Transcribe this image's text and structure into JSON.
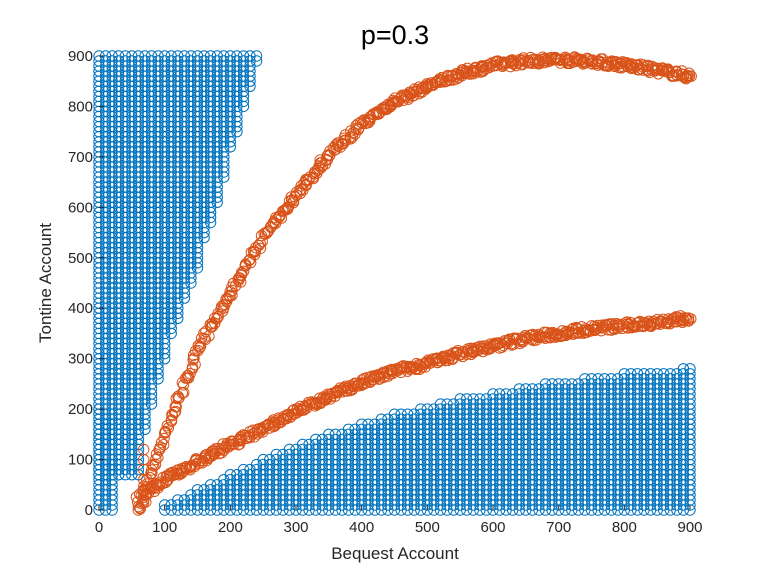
{
  "chart_data": {
    "type": "scatter",
    "title": "p=0.3",
    "xlabel": "Bequest Account",
    "ylabel": "Tontine Account",
    "xlim": [
      0,
      900
    ],
    "ylim": [
      0,
      900
    ],
    "xticks": [
      0,
      100,
      200,
      300,
      400,
      500,
      600,
      700,
      800,
      900
    ],
    "yticks": [
      0,
      100,
      200,
      300,
      400,
      500,
      600,
      700,
      800,
      900
    ],
    "grid": false,
    "legend": "none",
    "marker": "open-circle",
    "colors": {
      "blue": "#0072BD",
      "orange": "#D95319"
    },
    "blue_regions": [
      {
        "description_points": "upper-left region; for each x column, tontine values from y_min up to y_max",
        "x": [
          0,
          10,
          20,
          30,
          40,
          50,
          60,
          70,
          80,
          90,
          100,
          110,
          120,
          130,
          140,
          150,
          160,
          170,
          180,
          190,
          200,
          210,
          220,
          230,
          240
        ],
        "y_min": [
          70,
          70,
          70,
          70,
          70,
          70,
          70,
          160,
          210,
          260,
          300,
          350,
          380,
          420,
          450,
          480,
          540,
          570,
          610,
          660,
          720,
          750,
          800,
          840,
          890
        ],
        "y_max": [
          900,
          900,
          900,
          900,
          900,
          900,
          900,
          900,
          900,
          900,
          900,
          900,
          900,
          900,
          900,
          900,
          900,
          900,
          900,
          900,
          900,
          900,
          900,
          900,
          900
        ]
      },
      {
        "description_points": "lower-left narrow strip",
        "x": [
          0,
          10,
          20
        ],
        "y_min": [
          0,
          0,
          0
        ],
        "y_max": [
          200,
          180,
          100
        ]
      },
      {
        "description_points": "lower-right region; for each x column, tontine values from 0 up to y_max",
        "x": [
          100,
          150,
          200,
          250,
          300,
          350,
          400,
          450,
          500,
          550,
          600,
          650,
          700,
          750,
          800,
          850,
          900
        ],
        "y_min": [
          0,
          0,
          0,
          0,
          0,
          0,
          0,
          0,
          0,
          0,
          0,
          0,
          0,
          0,
          0,
          0,
          0
        ],
        "y_max": [
          10,
          40,
          70,
          100,
          125,
          150,
          170,
          190,
          205,
          220,
          232,
          245,
          255,
          263,
          270,
          276,
          282
        ]
      }
    ],
    "orange_curves": [
      {
        "description_points": "upper curve",
        "x": [
          60,
          75,
          100,
          130,
          160,
          200,
          250,
          300,
          350,
          400,
          450,
          500,
          550,
          600,
          650,
          700,
          750,
          800,
          850,
          900
        ],
        "y": [
          20,
          60,
          150,
          250,
          340,
          430,
          540,
          625,
          705,
          765,
          810,
          840,
          865,
          882,
          890,
          893,
          890,
          882,
          872,
          860
        ]
      },
      {
        "description_points": "lower curve",
        "x": [
          60,
          75,
          100,
          150,
          200,
          250,
          300,
          350,
          400,
          450,
          500,
          550,
          600,
          650,
          700,
          750,
          800,
          850,
          900
        ],
        "y": [
          0,
          35,
          60,
          95,
          130,
          160,
          195,
          225,
          252,
          275,
          290,
          310,
          325,
          340,
          350,
          360,
          365,
          372,
          380
        ]
      },
      {
        "description_points": "vertical connector near x=70",
        "x": [
          68,
          68,
          68,
          68,
          68,
          68
        ],
        "y": [
          20,
          40,
          60,
          80,
          100,
          120
        ]
      }
    ]
  }
}
